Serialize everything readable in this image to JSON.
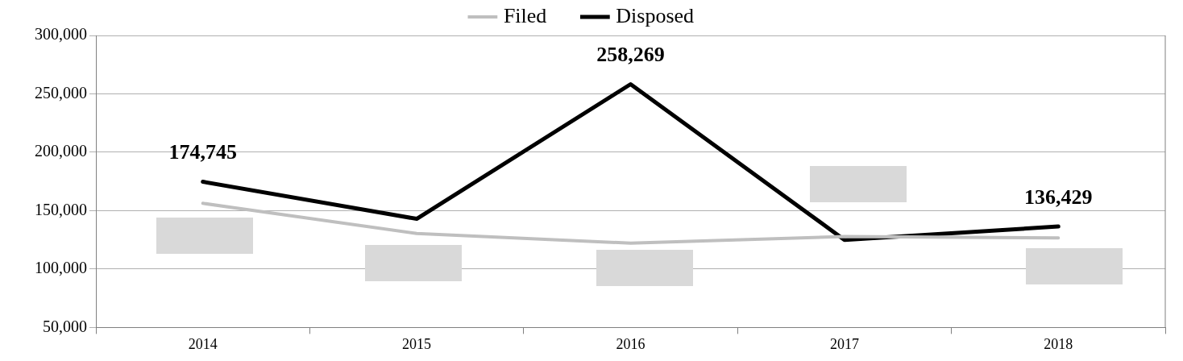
{
  "chart_data": {
    "type": "line",
    "categories": [
      "2014",
      "2015",
      "2016",
      "2017",
      "2018"
    ],
    "series": [
      {
        "name": "Filed",
        "color": "#bfbfbf",
        "values": [
          156300,
          130500,
          122200,
          127800,
          126600
        ]
      },
      {
        "name": "Disposed",
        "color": "#000000",
        "values": [
          174745,
          143000,
          258269,
          125000,
          136429
        ],
        "value_labels": [
          "174,745",
          null,
          "258,269",
          null,
          "136,429"
        ]
      }
    ],
    "ylim": [
      50000,
      300000
    ],
    "yticks": [
      {
        "value": 50000,
        "label": "50,000"
      },
      {
        "value": 100000,
        "label": "100,000"
      },
      {
        "value": 150000,
        "label": "150,000"
      },
      {
        "value": 200000,
        "label": "200,000"
      },
      {
        "value": 250000,
        "label": "250,000"
      },
      {
        "value": 300000,
        "label": "300,000"
      }
    ],
    "grid": "y",
    "legend": "top",
    "marker": "none",
    "line_style": "solid"
  }
}
